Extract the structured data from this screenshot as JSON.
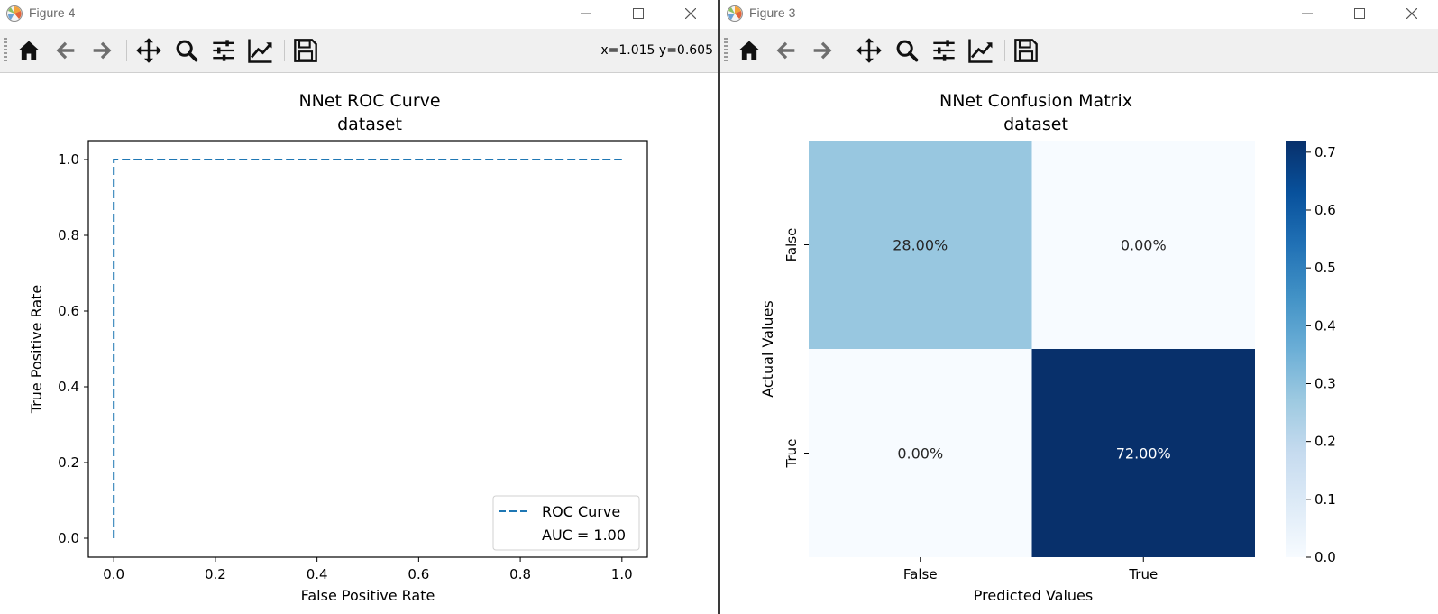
{
  "figure4": {
    "window_title": "Figure 4",
    "coords": "x=1.015 y=0.605",
    "toolbar": [
      "home-icon",
      "back-arrow-icon",
      "forward-arrow-icon",
      "pan-icon",
      "zoom-icon",
      "configure-subplots-icon",
      "edit-axis-icon",
      "save-icon"
    ],
    "chart_data": {
      "type": "line",
      "title": "NNet ROC Curve",
      "subtitle": "dataset",
      "xlabel": "False Positive Rate",
      "ylabel": "True Positive Rate",
      "xlim": [
        -0.05,
        1.05
      ],
      "ylim": [
        -0.05,
        1.05
      ],
      "xticks": [
        0.0,
        0.2,
        0.4,
        0.6,
        0.8,
        1.0
      ],
      "yticks": [
        0.0,
        0.2,
        0.4,
        0.6,
        0.8,
        1.0
      ],
      "tick_labels_x": [
        "0.0",
        "0.2",
        "0.4",
        "0.6",
        "0.8",
        "1.0"
      ],
      "tick_labels_y": [
        "0.0",
        "0.2",
        "0.4",
        "0.6",
        "0.8",
        "1.0"
      ],
      "series": [
        {
          "name": "ROC Curve",
          "color": "#1f77b4",
          "linestyle": "dashed",
          "x": [
            0.0,
            0.0,
            1.0
          ],
          "y": [
            0.0,
            1.0,
            1.0
          ]
        }
      ],
      "legend": {
        "placement": "lower right",
        "entries": [
          "ROC Curve",
          "AUC = 1.00"
        ]
      },
      "grid": false
    }
  },
  "figure3": {
    "window_title": "Figure 3",
    "toolbar": [
      "home-icon",
      "back-arrow-icon",
      "forward-arrow-icon",
      "pan-icon",
      "zoom-icon",
      "configure-subplots-icon",
      "edit-axis-icon",
      "save-icon"
    ],
    "chart_data": {
      "type": "heatmap",
      "title": "NNet Confusion Matrix",
      "subtitle": "dataset",
      "xlabel": "Predicted Values",
      "ylabel": "Actual Values",
      "x_categories": [
        "False",
        "True"
      ],
      "y_categories": [
        "False",
        "True"
      ],
      "values": [
        [
          0.28,
          0.0
        ],
        [
          0.0,
          0.72
        ]
      ],
      "cell_labels": [
        [
          "28.00%",
          "0.00%"
        ],
        [
          "0.00%",
          "72.00%"
        ]
      ],
      "colormap": "Blues",
      "colorbar": {
        "range": [
          0.0,
          0.72
        ],
        "ticks": [
          0.0,
          0.1,
          0.2,
          0.3,
          0.4,
          0.5,
          0.6,
          0.7
        ],
        "tick_labels": [
          "0.0",
          "0.1",
          "0.2",
          "0.3",
          "0.4",
          "0.5",
          "0.6",
          "0.7"
        ]
      }
    }
  }
}
